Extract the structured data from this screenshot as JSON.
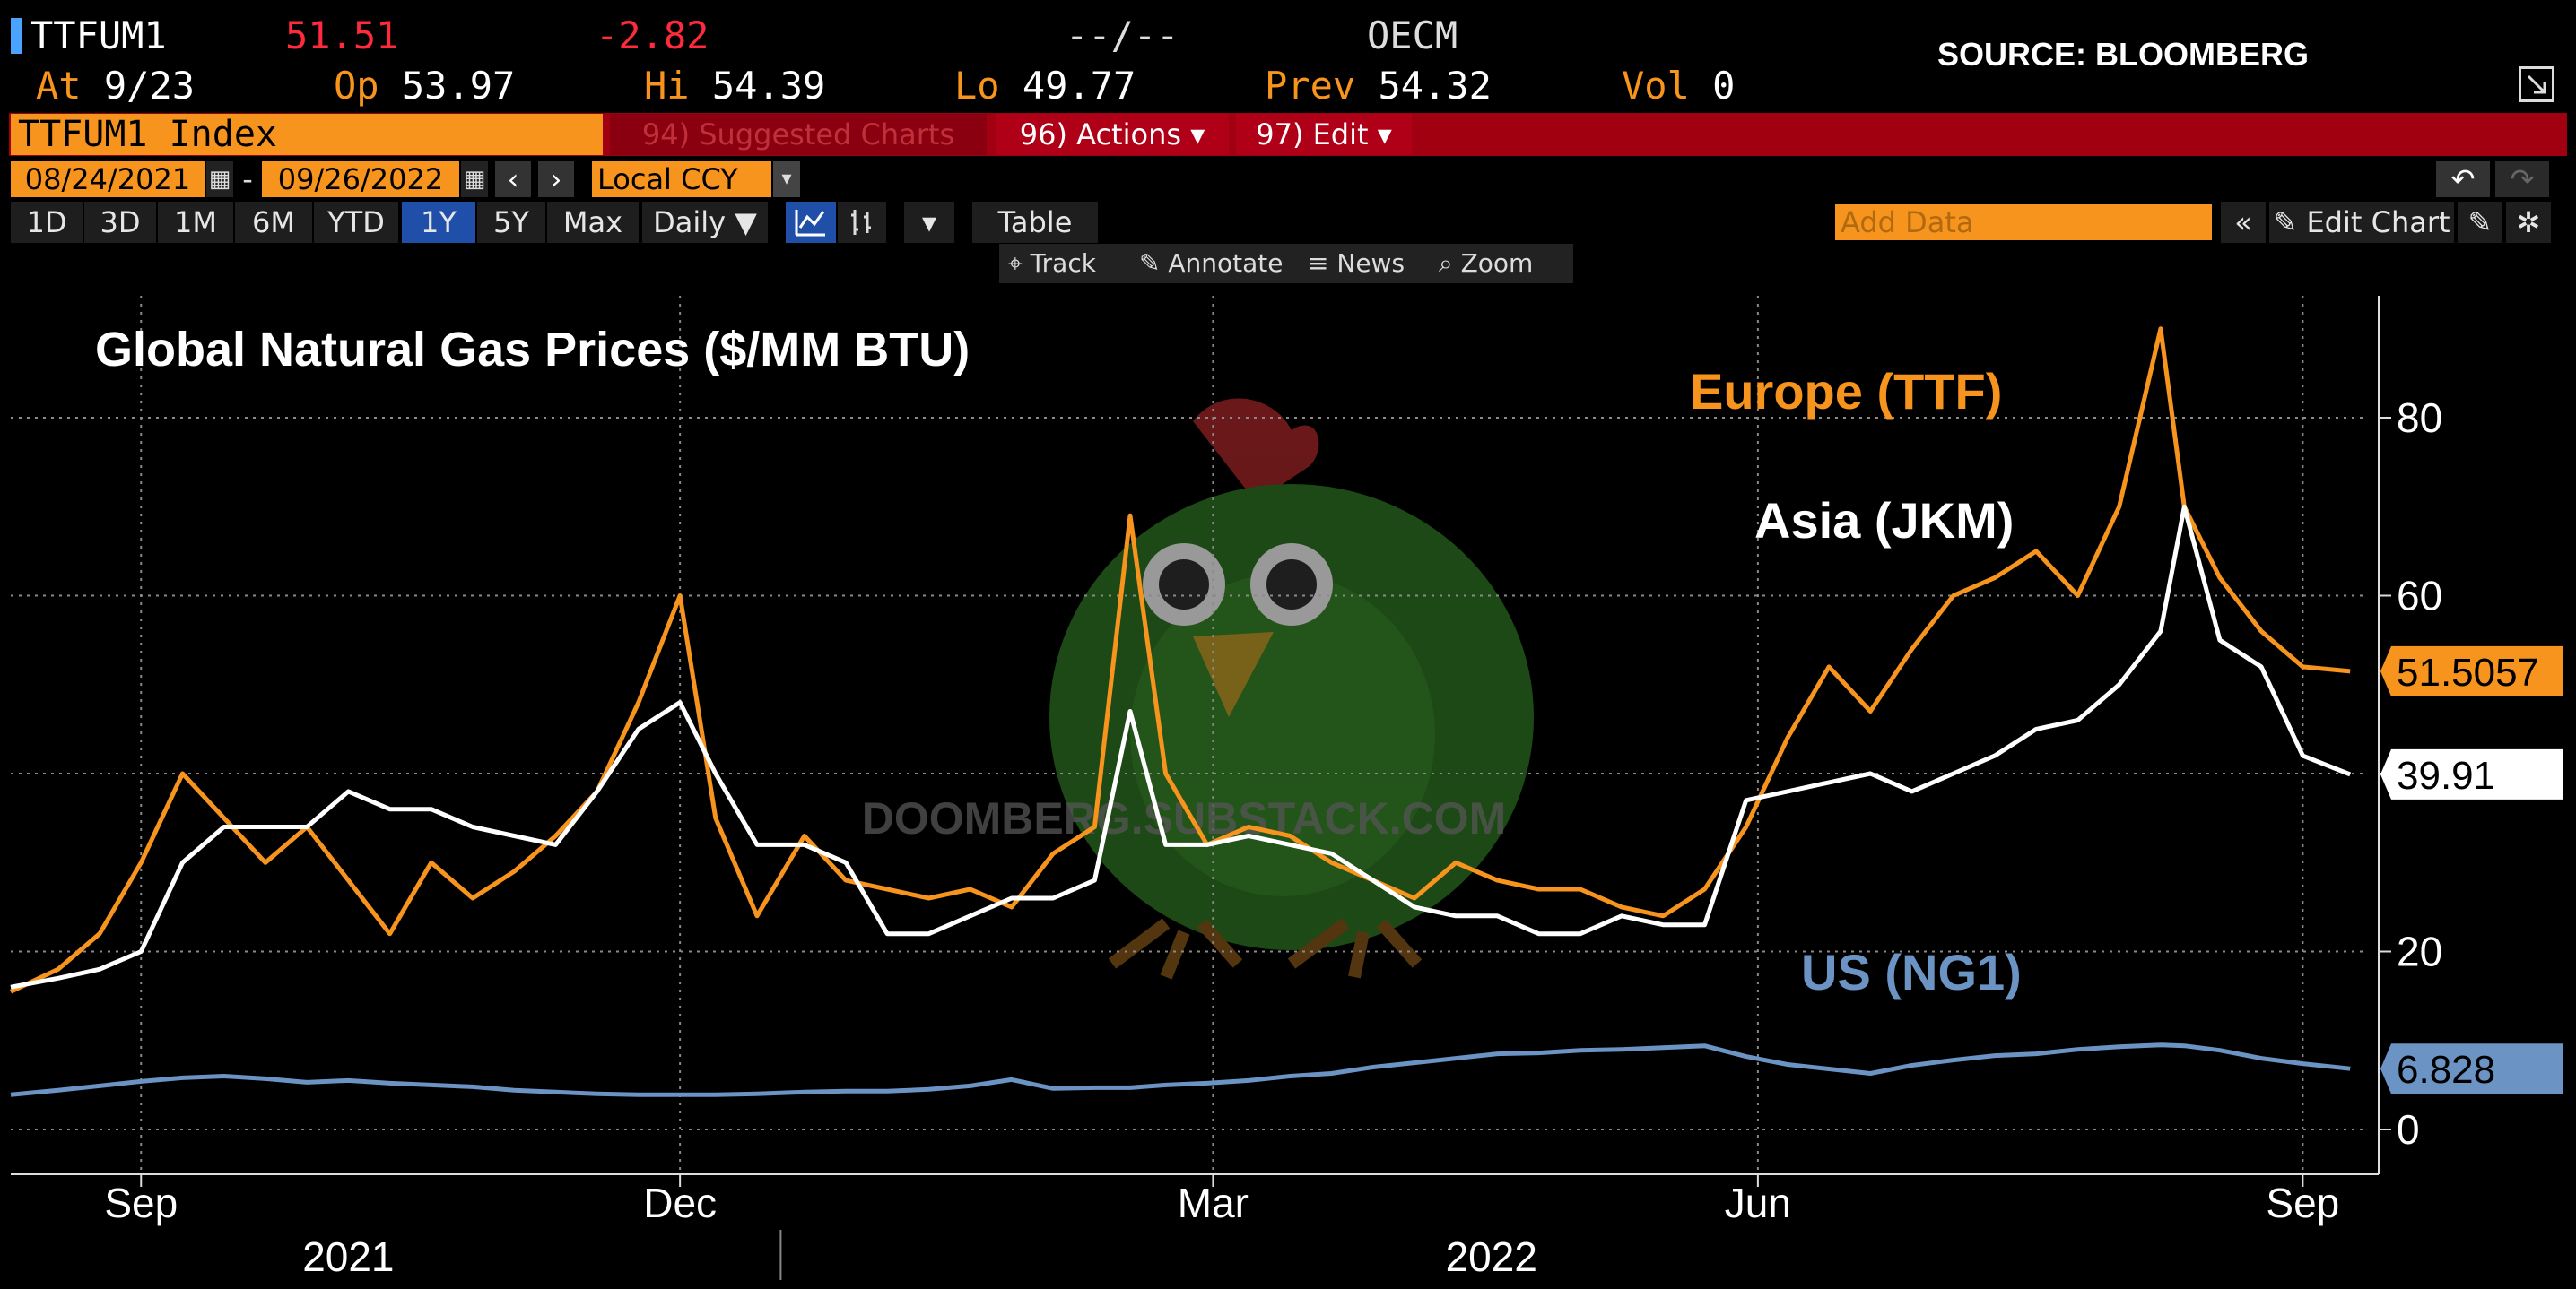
{
  "header": {
    "ticker": "TTFUM1",
    "last": "51.51",
    "change": "-2.82",
    "dash": "--/--",
    "source_code": "OECM",
    "source_note": "SOURCE: BLOOMBERG",
    "at_label": "At",
    "at_value": "9/23",
    "op_label": "Op",
    "op_value": "53.97",
    "hi_label": "Hi",
    "hi_value": "54.39",
    "lo_label": "Lo",
    "lo_value": "49.77",
    "prev_label": "Prev",
    "prev_value": "54.32",
    "vol_label": "Vol",
    "vol_value": "0"
  },
  "menu": {
    "index_name": "TTFUM1 Index",
    "suggested": "94) Suggested Charts",
    "actions": "96) Actions ▾",
    "edit": "97) Edit ▾"
  },
  "range": {
    "start": "08/24/2021",
    "end": "09/26/2022",
    "currency": "Local CCY"
  },
  "toolbar": {
    "periods": [
      "1D",
      "3D",
      "1M",
      "6M",
      "YTD",
      "1Y",
      "5Y",
      "Max"
    ],
    "active_period": "1Y",
    "frequency": "Daily ▼",
    "table": "Table",
    "add_data": "Add Data",
    "edit_chart": "Edit Chart",
    "tools": [
      "Track",
      "Annotate",
      "News",
      "Zoom"
    ]
  },
  "watermark": "DOOMBERG.SUBSTACK.COM",
  "colors": {
    "orange": "#f7941d",
    "white": "#ffffff",
    "blue": "#6b93c3",
    "red_bar": "#a00010",
    "bg": "#000000"
  },
  "chart_data": {
    "type": "line",
    "title": "Global Natural Gas Prices ($/MM BTU)",
    "ylim": [
      0,
      92
    ],
    "yticks": [
      0,
      20,
      40,
      60,
      80
    ],
    "xlim": [
      "2021-08-24",
      "2022-09-26"
    ],
    "x_ticks": [
      {
        "label": "Sep",
        "date": "2021-09-15"
      },
      {
        "label": "Dec",
        "date": "2021-12-15"
      },
      {
        "label": "Mar",
        "date": "2022-03-15"
      },
      {
        "label": "Jun",
        "date": "2022-06-15"
      },
      {
        "label": "Sep",
        "date": "2022-09-15"
      }
    ],
    "year_labels": [
      {
        "label": "2021",
        "date": "2021-10-20"
      },
      {
        "label": "2022",
        "date": "2022-05-01"
      }
    ],
    "x": [
      "2021-08-24",
      "2021-09-01",
      "2021-09-08",
      "2021-09-15",
      "2021-09-22",
      "2021-09-29",
      "2021-10-06",
      "2021-10-13",
      "2021-10-20",
      "2021-10-27",
      "2021-11-03",
      "2021-11-10",
      "2021-11-17",
      "2021-11-24",
      "2021-12-01",
      "2021-12-08",
      "2021-12-15",
      "2021-12-21",
      "2021-12-28",
      "2022-01-05",
      "2022-01-12",
      "2022-01-19",
      "2022-01-26",
      "2022-02-02",
      "2022-02-09",
      "2022-02-16",
      "2022-02-23",
      "2022-03-01",
      "2022-03-07",
      "2022-03-14",
      "2022-03-21",
      "2022-03-28",
      "2022-04-04",
      "2022-04-11",
      "2022-04-18",
      "2022-04-25",
      "2022-05-02",
      "2022-05-09",
      "2022-05-16",
      "2022-05-23",
      "2022-05-30",
      "2022-06-06",
      "2022-06-13",
      "2022-06-20",
      "2022-06-27",
      "2022-07-04",
      "2022-07-11",
      "2022-07-18",
      "2022-07-25",
      "2022-08-01",
      "2022-08-08",
      "2022-08-15",
      "2022-08-22",
      "2022-08-26",
      "2022-09-01",
      "2022-09-08",
      "2022-09-15",
      "2022-09-23"
    ],
    "series": [
      {
        "name": "Europe (TTF)",
        "color": "#f7941d",
        "values": [
          15.5,
          18,
          22,
          30,
          40,
          35,
          30,
          34,
          28,
          22,
          30,
          26,
          29,
          33,
          38,
          48,
          60,
          35,
          24,
          33,
          28,
          27,
          26,
          27,
          25,
          31,
          34,
          69,
          40,
          32,
          34,
          33,
          30,
          28,
          26,
          30,
          28,
          27,
          27,
          25,
          24,
          27,
          34,
          44,
          52,
          47,
          54,
          60,
          62,
          65,
          60,
          70,
          90,
          70,
          62,
          56,
          52,
          51.5
        ]
      },
      {
        "name": "Asia (JKM)",
        "color": "#ffffff",
        "values": [
          16,
          17,
          18,
          20,
          30,
          34,
          34,
          34,
          38,
          36,
          36,
          34,
          33,
          32,
          38,
          45,
          48,
          40,
          32,
          32,
          30,
          22,
          22,
          24,
          26,
          26,
          28,
          47,
          32,
          32,
          33,
          32,
          31,
          28,
          25,
          24,
          24,
          22,
          22,
          24,
          23,
          23,
          37,
          38,
          39,
          40,
          38,
          40,
          42,
          45,
          46,
          50,
          56,
          70,
          55,
          52,
          42,
          39.91
        ]
      },
      {
        "name": "US (NG1)",
        "color": "#6b93c3",
        "values": [
          3.9,
          4.4,
          4.9,
          5.4,
          5.8,
          6.0,
          5.7,
          5.3,
          5.5,
          5.2,
          5.0,
          4.8,
          4.4,
          4.2,
          4.0,
          3.9,
          3.9,
          3.9,
          4.0,
          4.2,
          4.3,
          4.3,
          4.5,
          4.9,
          5.6,
          4.6,
          4.7,
          4.7,
          5.0,
          5.2,
          5.5,
          6.0,
          6.3,
          7.0,
          7.5,
          8.0,
          8.5,
          8.6,
          8.9,
          9.0,
          9.2,
          9.4,
          8.2,
          7.3,
          6.8,
          6.3,
          7.2,
          7.8,
          8.3,
          8.5,
          9.0,
          9.3,
          9.5,
          9.4,
          8.9,
          8.0,
          7.4,
          6.828
        ]
      }
    ],
    "last_labels": [
      {
        "series": "Europe (TTF)",
        "value": "51.5057"
      },
      {
        "series": "Asia (JKM)",
        "value": "39.91"
      },
      {
        "series": "US (NG1)",
        "value": "6.828"
      }
    ],
    "annotations": [
      {
        "text": "Europe (TTF)",
        "color": "#f7941d"
      },
      {
        "text": "Asia (JKM)",
        "color": "#ffffff"
      },
      {
        "text": "US (NG1)",
        "color": "#6b93c3"
      }
    ]
  }
}
